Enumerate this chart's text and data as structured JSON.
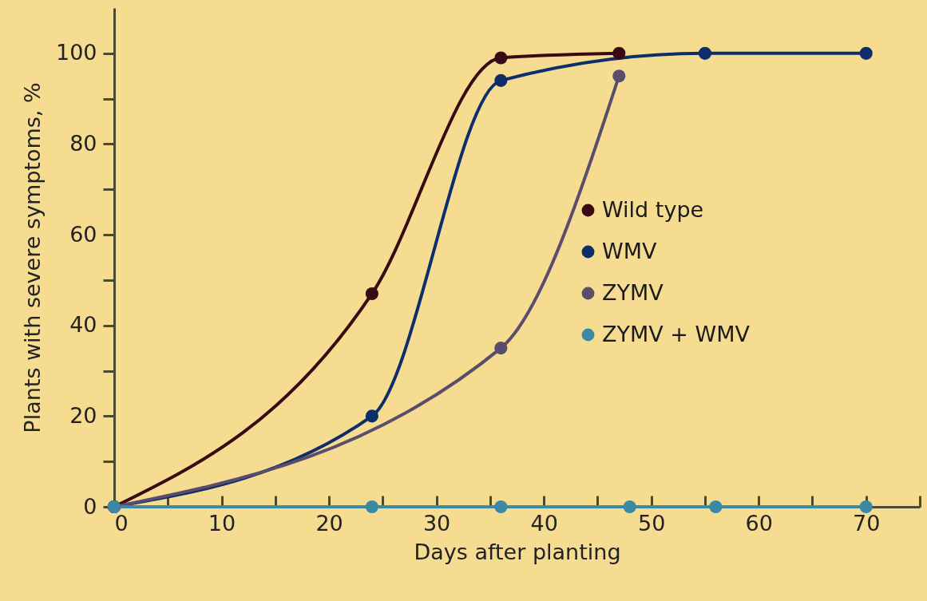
{
  "chart_data": {
    "type": "line",
    "xlabel": "Days after planting",
    "ylabel": "Plants with severe symptoms, %",
    "series": [
      {
        "name": "Wild type",
        "color": "#3a0a12",
        "x": [
          0,
          24,
          36,
          47
        ],
        "values": [
          0,
          47,
          99,
          100
        ]
      },
      {
        "name": "WMV",
        "color": "#0d2d6b",
        "x": [
          0,
          24,
          36,
          55,
          70
        ],
        "values": [
          0,
          20,
          94,
          100,
          100
        ]
      },
      {
        "name": "ZYMV",
        "color": "#5a4d6c",
        "x": [
          0,
          36,
          47
        ],
        "values": [
          0,
          35,
          95
        ]
      },
      {
        "name": "ZYMV + WMV",
        "color": "#3a8aa6",
        "x": [
          0,
          24,
          36,
          48,
          56,
          70
        ],
        "values": [
          0,
          0,
          0,
          0,
          0,
          0
        ]
      }
    ],
    "xlim": [
      0,
      75
    ],
    "ylim": [
      0,
      110
    ],
    "xticks": [
      0,
      {
        "value": 5,
        "label": null
      },
      10,
      {
        "value": 15,
        "label": null
      },
      20,
      {
        "value": 25,
        "label": null
      },
      30,
      {
        "value": 35,
        "label": null
      },
      40,
      {
        "value": 45,
        "label": null
      },
      50,
      {
        "value": 55,
        "label": null
      },
      60,
      {
        "value": 65,
        "label": null
      },
      70,
      {
        "value": 75,
        "label": null
      }
    ],
    "yticks": [
      0,
      {
        "value": 10,
        "label": null
      },
      20,
      {
        "value": 30,
        "label": null
      },
      40,
      {
        "value": 50,
        "label": null
      },
      60,
      {
        "value": 70,
        "label": null
      },
      80,
      {
        "value": 90,
        "label": null
      },
      100
    ],
    "grid": false,
    "legend": "right",
    "marker": "circle",
    "line_style": "solid"
  }
}
